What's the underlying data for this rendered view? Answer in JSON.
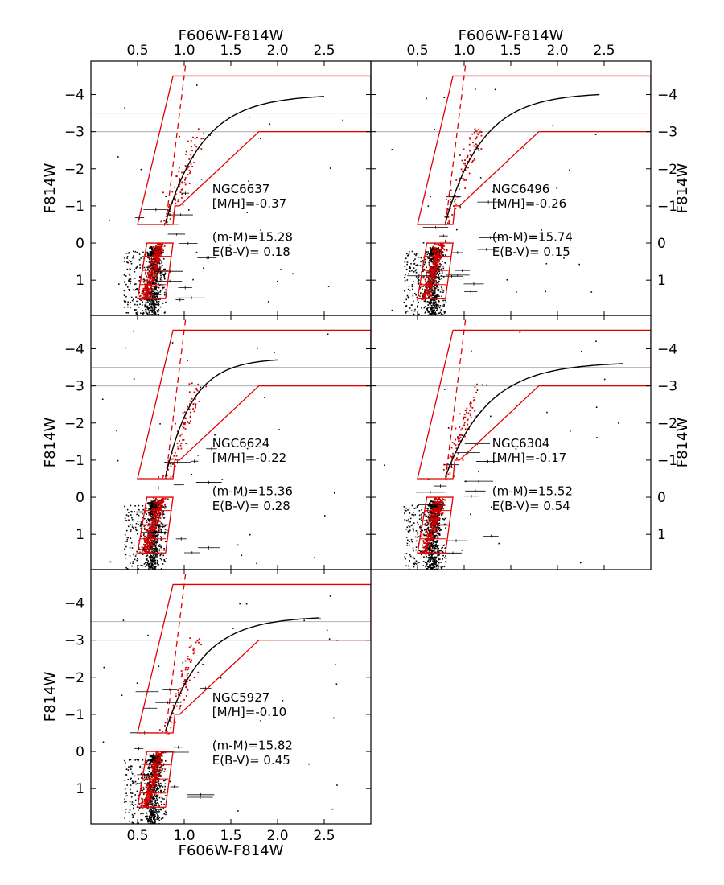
{
  "colors": {
    "frame": "#000000",
    "box": "#e00000",
    "members": "#cc0000",
    "field": "#000000",
    "guide": "#bbbbbb",
    "fiducial": "#000000"
  },
  "chart_data": {
    "type": "scatter",
    "description": "Five color-magnitude diagrams (F814W vs F606W-F814W) of globular clusters with selection boxes, fiducial RGB line and error bars",
    "xlabel": "F606W-F814W",
    "ylabel": "F814W",
    "xlim": [
      0.0,
      3.0
    ],
    "ylim": [
      1.95,
      -4.9
    ],
    "xticks": [
      0.5,
      1.0,
      1.5,
      2.0,
      2.5
    ],
    "xtick_labels": [
      "0.5",
      "1.0",
      "1.5",
      "2.0",
      "2.5"
    ],
    "yticks": [
      -4,
      -3,
      -2,
      -1,
      0,
      1
    ],
    "ytick_labels": [
      "−4",
      "−3",
      "−2",
      "−1",
      "0",
      "1"
    ],
    "guide_lines_y": [
      -3.5,
      -3.0
    ],
    "selection_boxes": {
      "upper_rgb": [
        [
          0.5,
          -0.5
        ],
        [
          0.88,
          -4.5
        ],
        [
          3.0,
          -4.5
        ],
        [
          3.0,
          -3.0
        ],
        [
          1.8,
          -3.0
        ],
        [
          0.95,
          -1.0
        ],
        [
          0.9,
          -1.0
        ],
        [
          0.88,
          -0.5
        ]
      ],
      "lower_rgb": [
        [
          0.5,
          1.5
        ],
        [
          0.6,
          0.0
        ],
        [
          0.88,
          0.0
        ],
        [
          0.8,
          1.5
        ]
      ],
      "dashed_ridge": [
        [
          0.8,
          -0.5
        ],
        [
          1.02,
          -4.9
        ]
      ]
    },
    "panels": [
      {
        "name": "NGC6637",
        "metallicity": "[M/H]=-0.37",
        "distance_modulus": "(m-M)=15.28",
        "reddening": "E(B-V)= 0.18",
        "rgb_tip_color": 2.5,
        "rgb_tip_mag": -3.95,
        "top_axis": true,
        "bottom_axis": false,
        "right_label": false
      },
      {
        "name": "NGC6496",
        "metallicity": "[M/H]=-0.26",
        "distance_modulus": "(m-M)=15.74",
        "reddening": "E(B-V)= 0.15",
        "rgb_tip_color": 2.45,
        "rgb_tip_mag": -4.0,
        "top_axis": true,
        "bottom_axis": false,
        "right_label": true
      },
      {
        "name": "NGC6624",
        "metallicity": "[M/H]=-0.22",
        "distance_modulus": "(m-M)=15.36",
        "reddening": "E(B-V)= 0.28",
        "rgb_tip_color": 2.0,
        "rgb_tip_mag": -3.7,
        "top_axis": false,
        "bottom_axis": false,
        "right_label": false
      },
      {
        "name": "NGC6304",
        "metallicity": "[M/H]=-0.17",
        "distance_modulus": "(m-M)=15.52",
        "reddening": "E(B-V)= 0.54",
        "rgb_tip_color": 2.7,
        "rgb_tip_mag": -3.6,
        "top_axis": false,
        "bottom_axis": false,
        "right_label": true
      },
      {
        "name": "NGC5927",
        "metallicity": "[M/H]=-0.10",
        "distance_modulus": "(m-M)=15.82",
        "reddening": "E(B-V)= 0.45",
        "rgb_tip_color": 2.45,
        "rgb_tip_mag": -3.6,
        "top_axis": false,
        "bottom_axis": true,
        "right_label": false
      }
    ]
  }
}
